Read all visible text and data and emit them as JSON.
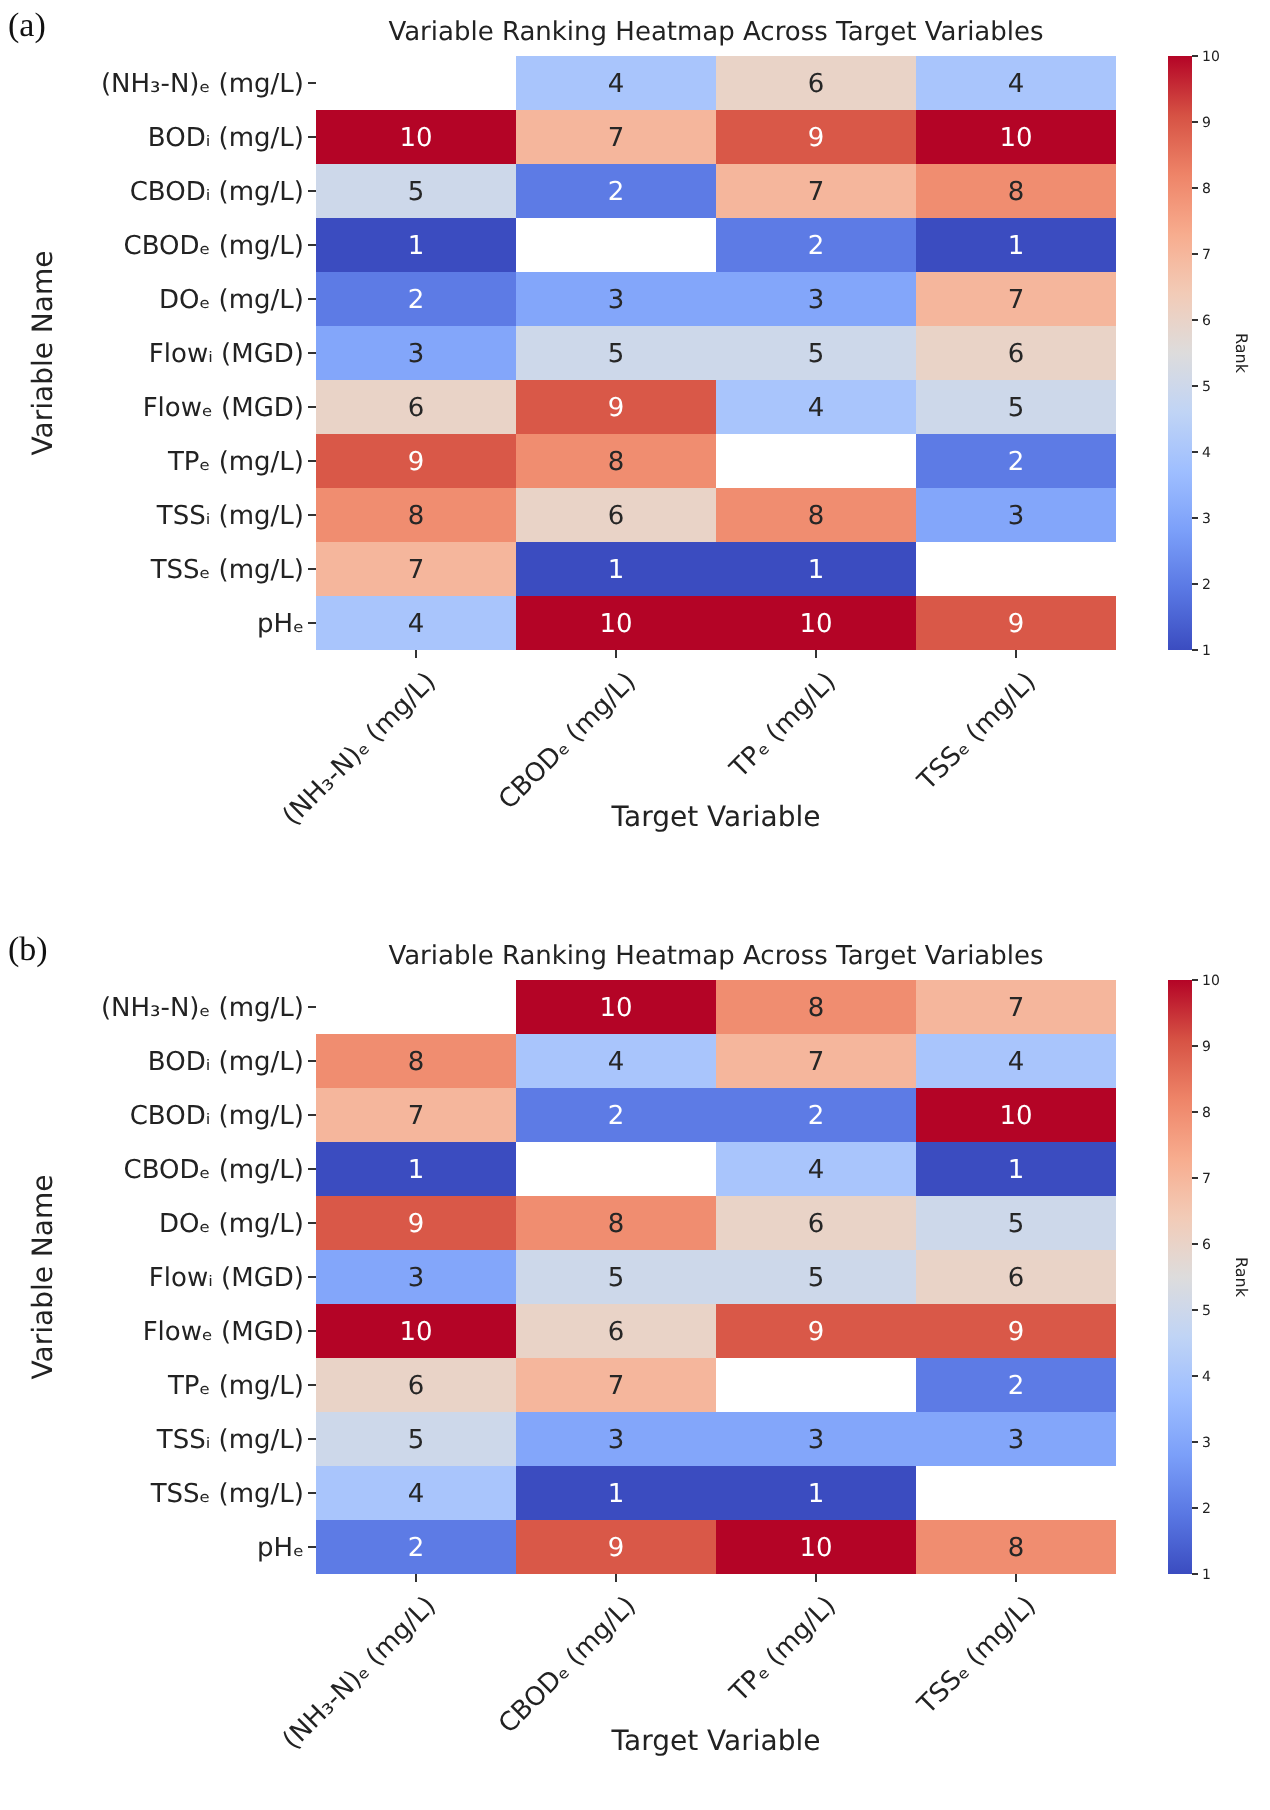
{
  "chart_data": [
    {
      "type": "heatmap",
      "title": "Variable Ranking Heatmap Across Target Variables",
      "xlabel": "Target Variable",
      "ylabel": "Variable Name",
      "clabel": "Rank",
      "annotations": [
        "(a)"
      ],
      "categories": [
        "(NH₃-N)ₑ (mg/L)",
        "CBODₑ (mg/L)",
        "TPₑ (mg/L)",
        "TSSₑ (mg/L)"
      ],
      "y_categories": [
        "(NH₃-N)ₑ (mg/L)",
        "BODᵢ (mg/L)",
        "CBODᵢ (mg/L)",
        "CBODₑ (mg/L)",
        "DOₑ (mg/L)",
        "Flowᵢ (MGD)",
        "Flowₑ (MGD)",
        "TPₑ (mg/L)",
        "TSSᵢ (mg/L)",
        "TSSₑ (mg/L)",
        "pHₑ"
      ],
      "cells": [
        [
          null,
          4,
          6,
          4
        ],
        [
          10,
          7,
          9,
          10
        ],
        [
          5,
          2,
          7,
          8
        ],
        [
          1,
          null,
          2,
          1
        ],
        [
          2,
          3,
          3,
          7
        ],
        [
          3,
          5,
          5,
          6
        ],
        [
          6,
          9,
          4,
          5
        ],
        [
          9,
          8,
          null,
          2
        ],
        [
          8,
          6,
          8,
          3
        ],
        [
          7,
          1,
          1,
          null
        ],
        [
          4,
          10,
          10,
          9
        ]
      ],
      "data_labels": true,
      "clim": [
        1,
        10
      ],
      "cticks": [
        1,
        2,
        3,
        4,
        5,
        6,
        7,
        8,
        9,
        10
      ]
    },
    {
      "type": "heatmap",
      "title": "Variable Ranking Heatmap Across Target Variables",
      "xlabel": "Target Variable",
      "ylabel": "Variable Name",
      "clabel": "Rank",
      "annotations": [
        "(b)"
      ],
      "categories": [
        "(NH₃-N)ₑ (mg/L)",
        "CBODₑ (mg/L)",
        "TPₑ (mg/L)",
        "TSSₑ (mg/L)"
      ],
      "y_categories": [
        "(NH₃-N)ₑ (mg/L)",
        "BODᵢ (mg/L)",
        "CBODᵢ (mg/L)",
        "CBODₑ (mg/L)",
        "DOₑ (mg/L)",
        "Flowᵢ (MGD)",
        "Flowₑ (MGD)",
        "TPₑ (mg/L)",
        "TSSᵢ (mg/L)",
        "TSSₑ (mg/L)",
        "pHₑ"
      ],
      "cells": [
        [
          null,
          10,
          8,
          7
        ],
        [
          8,
          4,
          7,
          4
        ],
        [
          7,
          2,
          2,
          10
        ],
        [
          1,
          null,
          4,
          1
        ],
        [
          9,
          8,
          6,
          5
        ],
        [
          3,
          5,
          5,
          6
        ],
        [
          10,
          6,
          9,
          9
        ],
        [
          6,
          7,
          null,
          2
        ],
        [
          5,
          3,
          3,
          3
        ],
        [
          4,
          1,
          1,
          null
        ],
        [
          2,
          9,
          10,
          8
        ]
      ],
      "data_labels": true,
      "clim": [
        1,
        10
      ],
      "cticks": [
        1,
        2,
        3,
        4,
        5,
        6,
        7,
        8,
        9,
        10
      ]
    }
  ]
}
